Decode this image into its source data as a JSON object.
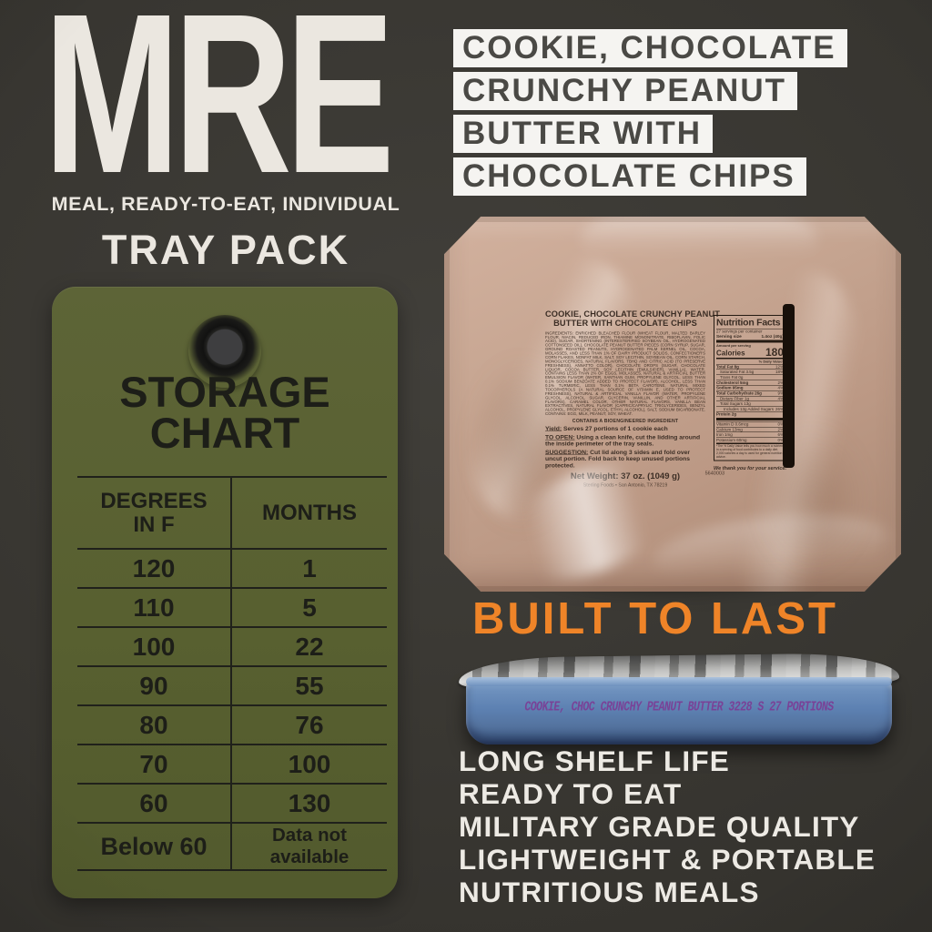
{
  "brand": {
    "title": "MRE",
    "subtitle": "MEAL, READY-TO-EAT, INDIVIDUAL",
    "pack_type": "TRAY PACK"
  },
  "headline": {
    "lines": [
      "COOKIE, CHOCOLATE",
      "CRUNCHY PEANUT",
      "BUTTER WITH",
      "CHOCOLATE CHIPS"
    ]
  },
  "storage_chart": {
    "type": "table",
    "title_lines": [
      "STORAGE",
      "CHART"
    ],
    "col1_header_lines": [
      "DEGREES",
      "IN F"
    ],
    "col2_header": "MONTHS",
    "rows": [
      [
        "120",
        "1"
      ],
      [
        "110",
        "5"
      ],
      [
        "100",
        "22"
      ],
      [
        "90",
        "55"
      ],
      [
        "80",
        "76"
      ],
      [
        "70",
        "100"
      ],
      [
        "60",
        "130"
      ],
      [
        "Below 60",
        "Data not available"
      ]
    ]
  },
  "package_label": {
    "title_line1": "COOKIE, CHOCOLATE CRUNCHY PEANUT",
    "title_line2": "BUTTER WITH CHOCOLATE CHIPS",
    "ingredients": "INGREDIENTS: ENRICHED BLEACHED FLOUR (WHEAT FLOUR, MALTED BARLEY FLOUR, NIACIN, REDUCED IRON, THIAMINE MONONITRATE, RIBOFLAVIN, FOLIC ACID), SUGAR, SHORTENING (INTERESTERIFIED SOYBEAN OIL, HYDROGENATED COTTONSEED OIL), CHOCOLATE PEANUT BUTTER PIECES (CORN SYRUP, SUGAR, GROUND ROASTED PEANUTS, HYDROGENATED PALM KERNEL OIL, COCOA, MOLASSES, AND LESS THAN 1% OF DAIRY PRODUCT SOLIDS, CONFECTIONER'S CORN FLAKES, NONFAT MILK, SALT, SOY LECITHIN, SOYBEAN OIL, CORN STARCH, MONOGLYCERIDES, NATURAL FLAVORS, TBHQ AND CITRIC ACID (TO PRESERVE FRESHNESS), ANNATTO COLOR), CHOCOLATE DROPS (SUGAR, CHOCOLATE LIQUOR, COCOA BUTTER, SOY LECITHIN (EMULSIFIER), VANILLA), WATER. CONTAINS LESS THAN 2% OF EGGS, MOLASSES, NATURAL & ARTIFICIAL BUTTER EMULSION FLAVOR (WATER, XANTHAN GUM, PROPYLENE GLYCOL, LESS THAN 0.1% SODIUM BENZOATE ADDED TO PROTECT FLAVOR), ALCOHOL, LESS THAN 0.1% TURMERIC, LESS THAN 0.1% BETA CAROTENE, NATURAL MIXED TOCOPHEROLS (A NATURAL SOURCE OF VITAMIN E, USED TO PROTECT FRESHNESS), NATURAL & ARTIFICIAL VANILLA FLAVOR (WATER, PROPYLENE GLYCOL, ALCOHOL, SUGAR, GLYCERIN, VANILLIN, AND OTHER ARTIFICIAL FLAVORS), CARAMEL COLOR, OTHER NATURAL FLAVORS, VANILLA BEAN EXTRACTIVES, NATURAL FLAVOR (CAPRIC/CAPRYLIC TRIGLYCERIDES, BENZYL ALCOHOL, PROPYLENE GLYCOL, ETHYL ALCOHOL), SALT, SODIUM BICARBONATE. CONTAINS: EGG, MILK, PEANUT, SOY, WHEAT.",
    "bioengineered": "CONTAINS A BIOENGINEERED INGREDIENT",
    "yield_label": "Yield:",
    "yield_text": " Serves 27 portions of 1 cookie each",
    "open_label": "TO OPEN:",
    "open_text": " Using a clean knife, cut the lidding around the inside perimeter of the tray seals.",
    "suggestion_label": "SUGGESTION:",
    "suggestion_text": " Cut lid along 3 sides and fold over uncut portion. Fold back to keep unused portions protected.",
    "net_weight": "Net Weight:  37 oz. (1049 g)",
    "maker": "Sterling Foods • San Antonio, TX 78219",
    "code": "5640003"
  },
  "nutrition": {
    "title": "Nutrition Facts",
    "servings": "27 servings per container",
    "serving_size_label": "Serving size",
    "serving_size_value": "1.4oz (40g)",
    "amount_label": "Amount per serving",
    "calories_label": "Calories",
    "calories_value": "180",
    "daily_value": "% Daily Value*",
    "rows": [
      {
        "label": "Total Fat 8g",
        "value": "12%"
      },
      {
        "label": "Saturated Fat 3.5g",
        "value": "18%"
      },
      {
        "label": "Trans Fat 0g",
        "value": ""
      },
      {
        "label": "Cholesterol 5mg",
        "value": "2%"
      },
      {
        "label": "Sodium 95mg",
        "value": "4%"
      },
      {
        "label": "Total Carbohydrate 26g",
        "value": "9%"
      },
      {
        "label": "Dietary Fiber 1g",
        "value": "4%"
      },
      {
        "label": "Total Sugars 13g",
        "value": ""
      },
      {
        "label": "Includes 13g Added Sugars",
        "value": "26%"
      },
      {
        "label": "Protein 2g",
        "value": ""
      },
      {
        "label": "Vitamin D 0.6mcg",
        "value": "0%"
      },
      {
        "label": "Calcium 13mg",
        "value": "2%"
      },
      {
        "label": "Iron 1mg",
        "value": "6%"
      },
      {
        "label": "Potassium 60mg",
        "value": "0%"
      }
    ],
    "footnote": "*The % Daily Value tells you how much a nutrient in a serving of food contributes to a daily diet. 2,000 calories a day is used for general nutrition advice.",
    "thanks": "We thank you for your service."
  },
  "built_to_last": "BUILT TO LAST",
  "tray_stamp": "COOKIE, CHOC CRUNCHY PEANUT BUTTER 3228 S 27 PORTIONS",
  "features": [
    "LONG SHELF LIFE",
    "READY TO EAT",
    "MILITARY GRADE QUALITY",
    "LIGHTWEIGHT & PORTABLE",
    "NUTRITIOUS MEALS"
  ],
  "colors": {
    "background": "#37352f",
    "cream": "#ebe7e0",
    "highlight_bar": "#f5f4f1",
    "bar_text": "#4a4945",
    "tag_green": "#5a6134",
    "tag_text": "#1d1e18",
    "package_tan": "#c6a591",
    "accent_orange": "#ef8428",
    "tray_blue": "#5d81b2",
    "stamp_purple": "#7b3f96"
  }
}
